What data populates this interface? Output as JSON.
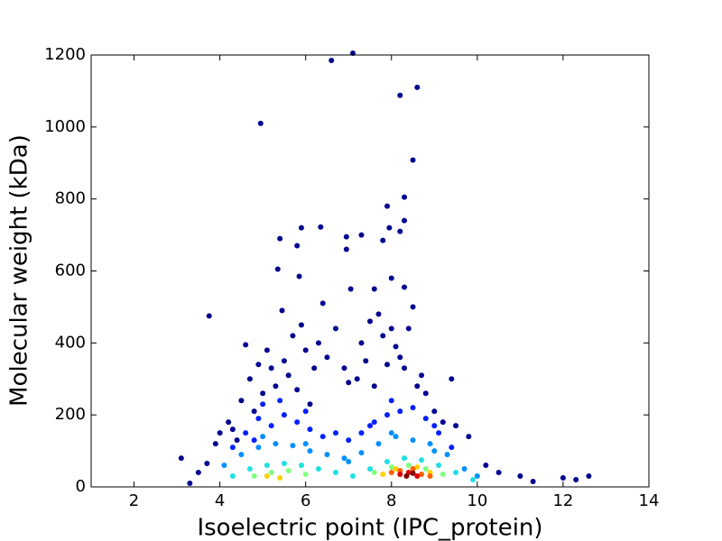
{
  "chart_data": {
    "type": "scatter",
    "x_label": "Isoelectric point (IPC_protein)",
    "y_label": "Molecular weight (kDa)",
    "xlim": [
      1,
      14
    ],
    "xticks": [
      2,
      4,
      6,
      8,
      10,
      12,
      14
    ],
    "ylim": [
      0,
      1200
    ],
    "yticks": [
      0,
      200,
      400,
      600,
      800,
      1000,
      1200
    ],
    "series": [
      {
        "color": "#00008f",
        "x": [
          3.1,
          3.75,
          4.6,
          4.95,
          5.35,
          5.4,
          5.45,
          5.8,
          5.9,
          5.85,
          6.35,
          6.4,
          6.6,
          6.95,
          6.95,
          7.05,
          7.1,
          7.3,
          7.6,
          7.8,
          7.95,
          7.9,
          8.2,
          8.2,
          8.3,
          8.3,
          8.5,
          8.6,
          8.0,
          8.3,
          8.5,
          9.4,
          9.8,
          12.0,
          12.6,
          12.3,
          3.3,
          3.5,
          3.7,
          4.0,
          4.2,
          4.4,
          4.5,
          4.7,
          4.8,
          4.9,
          5.0,
          5.1,
          5.2,
          5.3,
          5.5,
          5.6,
          5.7,
          5.8,
          5.9,
          6.0,
          6.1,
          6.2,
          6.3,
          6.5,
          6.7,
          6.9,
          7.0,
          7.2,
          7.3,
          7.4,
          7.5,
          7.6,
          7.7,
          7.8,
          7.9,
          8.0,
          8.1,
          8.2,
          8.3,
          8.4,
          8.6,
          8.7,
          8.8,
          9.0,
          9.2,
          9.5,
          10.2,
          10.5,
          11.0,
          11.3,
          3.9,
          4.3
        ],
        "y": [
          80,
          475,
          395,
          1010,
          605,
          690,
          490,
          670,
          720,
          585,
          722,
          510,
          1185,
          695,
          660,
          550,
          1205,
          700,
          550,
          685,
          720,
          780,
          710,
          1088,
          740,
          805,
          908,
          1110,
          580,
          555,
          500,
          300,
          140,
          25,
          30,
          20,
          10,
          40,
          65,
          150,
          180,
          130,
          240,
          300,
          210,
          340,
          260,
          380,
          330,
          280,
          350,
          310,
          420,
          270,
          450,
          380,
          230,
          330,
          400,
          360,
          440,
          330,
          290,
          300,
          400,
          350,
          460,
          280,
          480,
          420,
          340,
          440,
          390,
          360,
          330,
          440,
          280,
          310,
          260,
          210,
          180,
          170,
          60,
          40,
          30,
          15,
          120,
          160
        ]
      },
      {
        "color": "#0020ff",
        "x": [
          4.3,
          4.6,
          4.9,
          5.2,
          5.5,
          5.8,
          6.1,
          6.4,
          6.7,
          7.0,
          7.3,
          7.6,
          7.9,
          8.2,
          8.5,
          8.8,
          9.1,
          9.4,
          5.0,
          6.0,
          7.5,
          8.0,
          9.0,
          4.8,
          5.4
        ],
        "y": [
          110,
          150,
          190,
          170,
          200,
          180,
          160,
          140,
          150,
          130,
          150,
          180,
          200,
          210,
          220,
          190,
          150,
          110,
          230,
          210,
          170,
          240,
          170,
          130,
          240
        ]
      },
      {
        "color": "#0090ff",
        "x": [
          4.1,
          4.5,
          4.9,
          5.3,
          5.7,
          6.1,
          6.5,
          6.9,
          7.3,
          7.7,
          8.1,
          8.5,
          8.9,
          9.3,
          9.7,
          10.0,
          5.0,
          6.0,
          7.0,
          8.0,
          9.0
        ],
        "y": [
          60,
          90,
          110,
          120,
          115,
          100,
          90,
          80,
          95,
          120,
          140,
          130,
          120,
          90,
          50,
          30,
          140,
          120,
          70,
          150,
          100
        ]
      },
      {
        "color": "#20e0e0",
        "x": [
          4.3,
          4.7,
          5.1,
          5.5,
          5.9,
          6.3,
          6.7,
          7.1,
          7.5,
          7.9,
          8.3,
          8.7,
          9.1,
          9.5,
          9.9
        ],
        "y": [
          30,
          50,
          60,
          65,
          60,
          50,
          40,
          30,
          50,
          70,
          80,
          75,
          60,
          40,
          20
        ]
      },
      {
        "color": "#80ff80",
        "x": [
          4.8,
          5.2,
          5.6,
          6.0,
          7.6,
          8.0,
          8.4,
          8.8,
          9.2
        ],
        "y": [
          30,
          40,
          45,
          35,
          40,
          55,
          60,
          50,
          35
        ]
      },
      {
        "color": "#ffd000",
        "x": [
          5.1,
          5.4,
          7.8,
          8.1,
          8.6,
          8.9
        ],
        "y": [
          30,
          25,
          35,
          50,
          55,
          40
        ]
      },
      {
        "color": "#ff6000",
        "x": [
          8.0,
          8.2,
          8.5,
          8.7,
          8.9
        ],
        "y": [
          40,
          45,
          50,
          35,
          30
        ]
      },
      {
        "color": "#e00000",
        "x": [
          8.2,
          8.4,
          8.6
        ],
        "y": [
          35,
          40,
          30
        ]
      },
      {
        "color": "#800000",
        "x": [
          8.35,
          8.5
        ],
        "y": [
          30,
          38
        ]
      }
    ]
  }
}
